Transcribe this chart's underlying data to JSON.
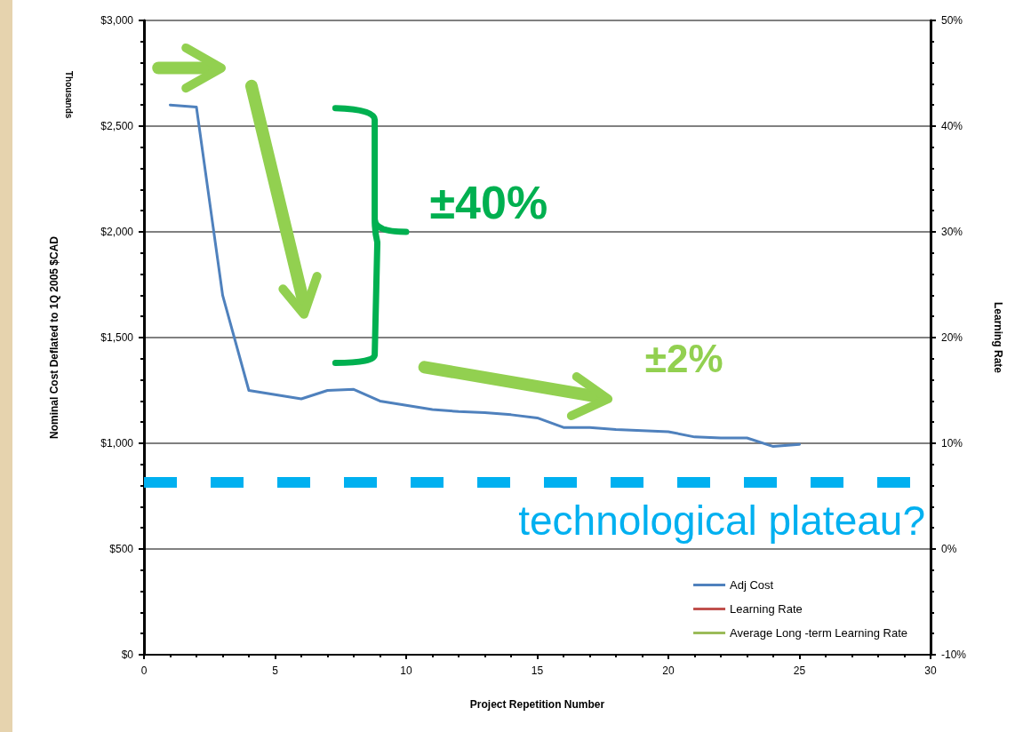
{
  "chart_data": {
    "type": "line",
    "xlabel": "Project Repetition Number",
    "ylabel": "Nominal Cost Deflated to 1Q 2005 $CAD",
    "y2label": "Learning Rate",
    "x": [
      1,
      2,
      3,
      4,
      5,
      6,
      7,
      8,
      9,
      10,
      11,
      12,
      13,
      14,
      15,
      16,
      17,
      18,
      19,
      20,
      21,
      22,
      23,
      24,
      25
    ],
    "series": [
      {
        "name": "Adj Cost",
        "color": "#4f81bd",
        "values": [
          2600,
          2590,
          1700,
          1250,
          1230,
          1210,
          1250,
          1255,
          1200,
          1180,
          1160,
          1150,
          1145,
          1135,
          1120,
          1075,
          1075,
          1065,
          1060,
          1055,
          1030,
          1025,
          1025,
          985,
          995
        ]
      },
      {
        "name": "Learning Rate",
        "color": "#c0504d",
        "values": [
          null,
          null,
          null,
          null,
          null,
          null,
          null,
          null,
          null,
          null,
          null,
          null,
          null,
          null,
          null,
          null,
          null,
          null,
          null,
          null,
          null,
          null,
          null,
          null,
          null
        ]
      },
      {
        "name": "Average Long -term Learning Rate",
        "color": "#9bbb59",
        "values": [
          null,
          null,
          null,
          null,
          null,
          null,
          null,
          null,
          null,
          null,
          null,
          null,
          null,
          null,
          null,
          null,
          null,
          null,
          null,
          null,
          null,
          null,
          null,
          null,
          null
        ]
      }
    ],
    "xlim": [
      0,
      30
    ],
    "xticks": [
      0,
      5,
      10,
      15,
      20,
      25,
      30
    ],
    "ylim": [
      0,
      3000
    ],
    "yticks": [
      {
        "value": 0,
        "label": "$0"
      },
      {
        "value": 500,
        "label": "$500"
      },
      {
        "value": 1000,
        "label": "$1,000"
      },
      {
        "value": 1500,
        "label": "$1,500"
      },
      {
        "value": 2000,
        "label": "$2,000"
      },
      {
        "value": 2500,
        "label": "$2,500"
      },
      {
        "value": 3000,
        "label": "$3,000"
      }
    ],
    "y2lim": [
      -10,
      50
    ],
    "y2ticks": [
      {
        "value": -10,
        "label": "-10%"
      },
      {
        "value": 0,
        "label": "0%"
      },
      {
        "value": 10,
        "label": "10%"
      },
      {
        "value": 20,
        "label": "20%"
      },
      {
        "value": 30,
        "label": "30%"
      },
      {
        "value": 40,
        "label": "40%"
      },
      {
        "value": 50,
        "label": "50%"
      }
    ],
    "ref_lines": [
      {
        "axis": "y",
        "value": 815,
        "label": "technological plateau?",
        "color": "#00b0f0",
        "line_style": "dashed"
      }
    ],
    "annotations": [
      "Thousands",
      "±40%",
      "±2%"
    ],
    "grid": "y",
    "legend": "bottom right",
    "marker": "none",
    "line_style": "solid"
  }
}
